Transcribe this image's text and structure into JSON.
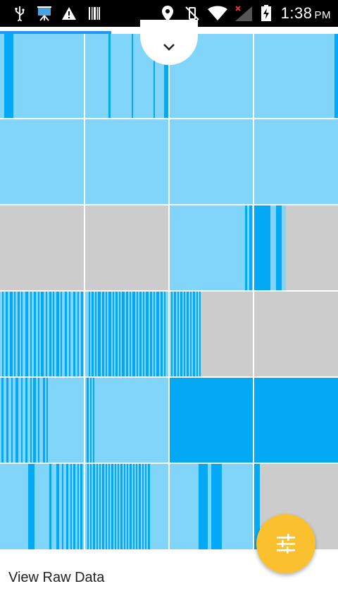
{
  "status_bar": {
    "time": "1:38",
    "ampm": "PM",
    "icons": [
      "usb-icon",
      "presentation-icon",
      "warning-icon",
      "barcode-icon",
      "location-icon",
      "vibrate-off-icon",
      "wifi-icon",
      "signal-icon",
      "battery-charging-icon"
    ]
  },
  "progress": {
    "fraction": 0.33
  },
  "colors": {
    "light": "#81d4fa",
    "dark": "#03a9f4",
    "empty": "#cccccc",
    "fab": "#fbc02d"
  },
  "grid": {
    "rows": 6,
    "cols": 4,
    "cells": [
      [
        "light",
        "light",
        "light",
        "light"
      ],
      [
        "light",
        "light",
        "light",
        "light"
      ],
      [
        "empty",
        "empty",
        "light",
        "light-partial"
      ],
      [
        "light",
        "light",
        "light-partial",
        "empty"
      ],
      [
        "light",
        "light",
        "dark",
        "dark"
      ],
      [
        "light",
        "light",
        "light",
        "light-partial"
      ]
    ]
  },
  "collapse_button": {
    "icon": "chevron-down-icon"
  },
  "fab": {
    "icon": "tune-icon"
  },
  "footer": {
    "label": "View Raw Data"
  }
}
